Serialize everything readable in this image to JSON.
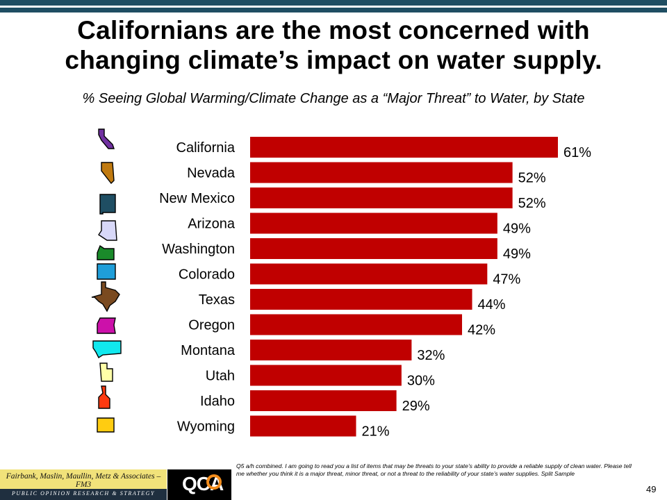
{
  "title_line1": "Californians are the most concerned with",
  "title_line2": "changing climate’s impact on water supply.",
  "subtitle": "% Seeing Global Warming/Climate Change as a “Major Threat” to Water, by State",
  "chart_data": {
    "type": "bar",
    "orientation": "horizontal",
    "title": "% Seeing Global Warming/Climate Change as a “Major Threat” to Water, by State",
    "xlabel": "",
    "ylabel": "",
    "categories": [
      "California",
      "Nevada",
      "New Mexico",
      "Arizona",
      "Washington",
      "Colorado",
      "Texas",
      "Oregon",
      "Montana",
      "Utah",
      "Idaho",
      "Wyoming"
    ],
    "values": [
      61,
      52,
      52,
      49,
      49,
      47,
      44,
      42,
      32,
      30,
      29,
      21
    ],
    "value_labels": [
      "61%",
      "52%",
      "52%",
      "49%",
      "49%",
      "47%",
      "44%",
      "42%",
      "32%",
      "30%",
      "29%",
      "21%"
    ],
    "xlim": [
      0,
      61
    ],
    "grid": false,
    "legend": "none",
    "bar_color": "#c00000",
    "icon_names": [
      "california-icon",
      "nevada-icon",
      "new-mexico-icon",
      "arizona-icon",
      "washington-icon",
      "colorado-icon",
      "texas-icon",
      "oregon-icon",
      "montana-icon",
      "utah-icon",
      "idaho-icon",
      "wyoming-icon"
    ],
    "icon_colors": [
      "#7030a0",
      "#c07a10",
      "#1f4e63",
      "#d8d8f8",
      "#1a8a2a",
      "#1f9ed9",
      "#7a4a20",
      "#cc11aa",
      "#11e8ee",
      "#ffffa8",
      "#ff3a10",
      "#ffcc11"
    ]
  },
  "footer": {
    "firm_name": "Fairbank, Maslin, Maullin, Metz & Associates – FM3",
    "firm_tagline": "PUBLIC OPINION RESEARCH & STRATEGY",
    "partner_logo": "QCA",
    "note": "Q5 a/h combined. I am going to read you a list of items that may be threats to your state’s ability to provide a reliable supply of clean water.  Please tell me whether you think it is a major threat, minor threat, or not a threat to the reliability of your state’s water supplies. Split Sample",
    "page_number": "49"
  },
  "colors": {
    "band": "#1f4e63",
    "bar": "#c00000",
    "fm3_bg": "#f1e27a",
    "qca_ring": "#f28c1c"
  }
}
